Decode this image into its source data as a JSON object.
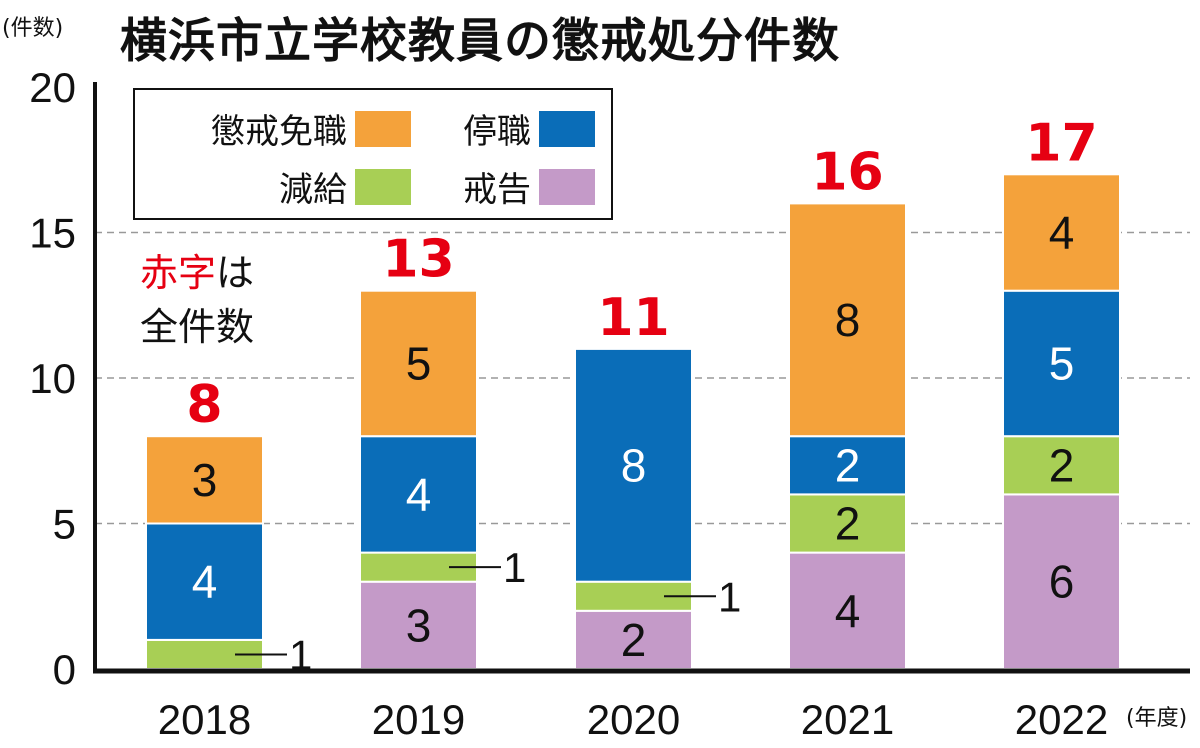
{
  "title": "横浜市立学校教員の懲戒処分件数",
  "y_unit": "(件数)",
  "x_unit": "(年度)",
  "note": {
    "red_part": "赤字",
    "rest_line1": "は",
    "line2": "全件数"
  },
  "colors": {
    "懲戒免職": "#f4a23b",
    "停職": "#0a6db8",
    "減給": "#a8cf55",
    "戒告": "#c49ac8",
    "total": "#e60012"
  },
  "chart_data": {
    "type": "bar",
    "stacked": true,
    "title": "横浜市立学校教員の懲戒処分件数",
    "ylabel": "(件数)",
    "xlabel": "(年度)",
    "ylim": [
      0,
      20
    ],
    "yticks": [
      0,
      5,
      10,
      15,
      20
    ],
    "grid": true,
    "legend": "top-left",
    "categories": [
      "2018",
      "2019",
      "2020",
      "2021",
      "2022"
    ],
    "series": [
      {
        "name": "戒告",
        "values": [
          0,
          3,
          2,
          4,
          6
        ]
      },
      {
        "name": "減給",
        "values": [
          1,
          1,
          1,
          2,
          2
        ]
      },
      {
        "name": "停職",
        "values": [
          4,
          4,
          8,
          2,
          5
        ]
      },
      {
        "name": "懲戒免職",
        "values": [
          3,
          5,
          0,
          8,
          4
        ]
      }
    ],
    "totals": [
      8,
      13,
      11,
      16,
      17
    ]
  }
}
